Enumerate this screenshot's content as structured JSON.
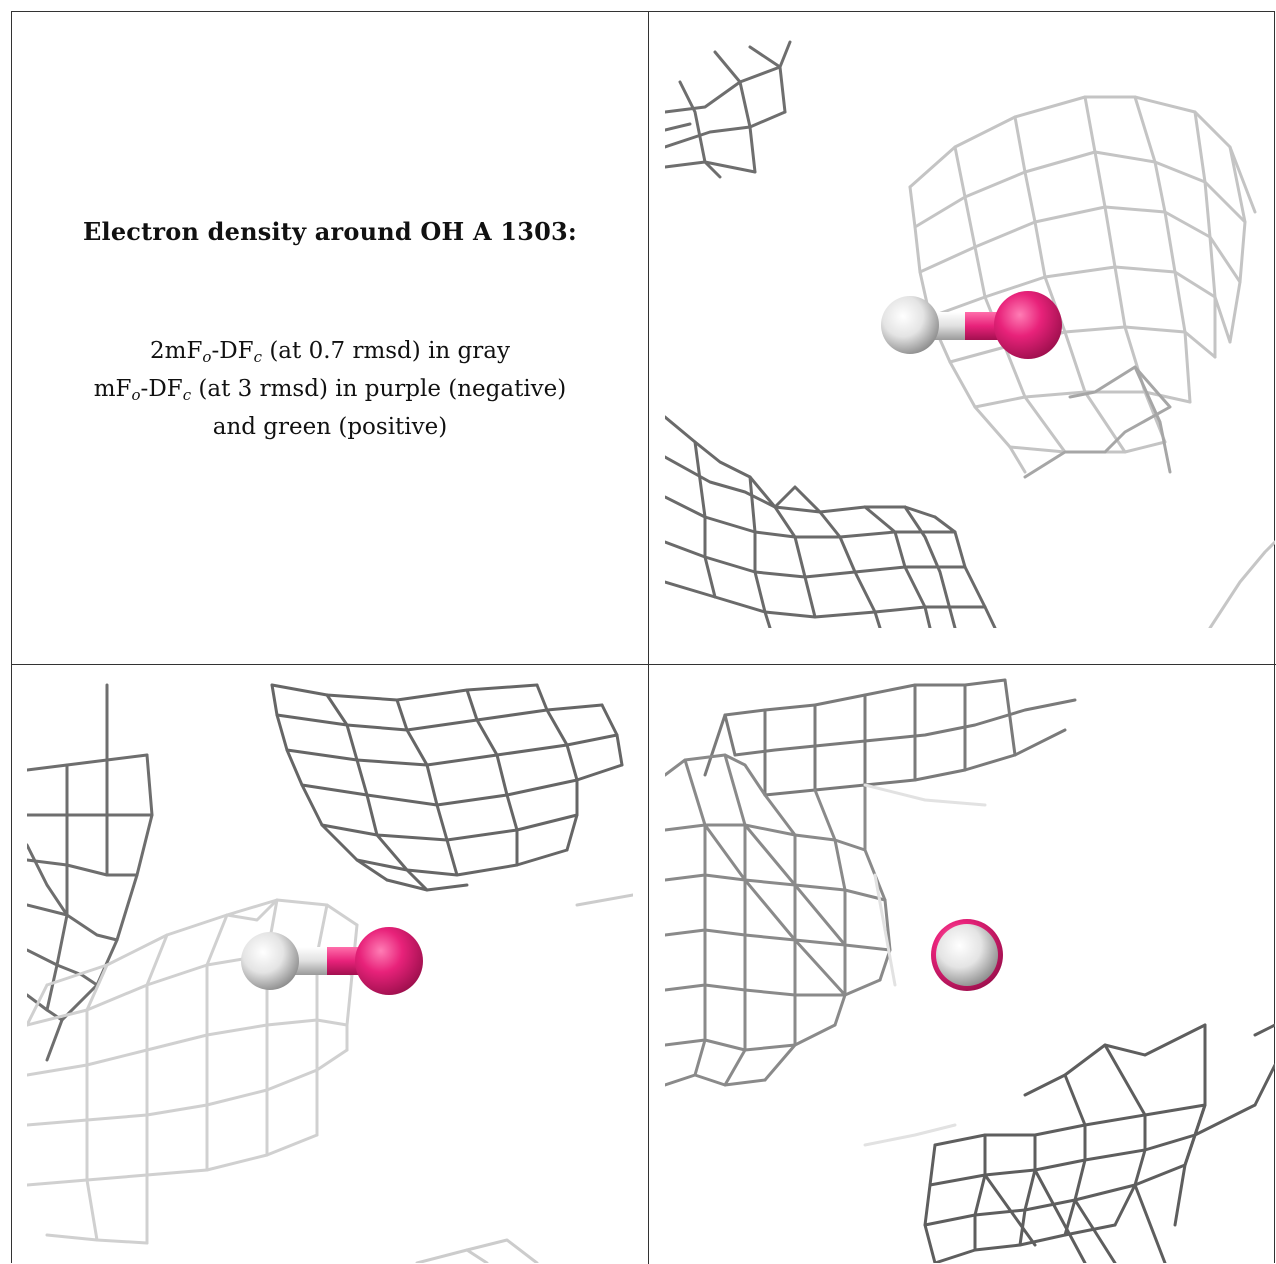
{
  "caption": {
    "title": "Electron density around OH A 1303:",
    "line1": {
      "a": "2mF",
      "sub1": "o",
      "b": "-DF",
      "sub2": "c",
      "c": " (at 0.7 rmsd) in gray"
    },
    "line2": {
      "a": "mF",
      "sub1": "o",
      "b": "-DF",
      "sub2": "c",
      "c": " (at 3 rmsd) in purple (negative)"
    },
    "line3": "and green (positive)"
  },
  "colors": {
    "mesh_dark": "#5a5a5a",
    "mesh_mid": "#8c8c8c",
    "mesh_light": "#c8c8c8",
    "oxygen": "#e8227a",
    "hydrogen": "#e6e6e6",
    "border": "#333333"
  }
}
